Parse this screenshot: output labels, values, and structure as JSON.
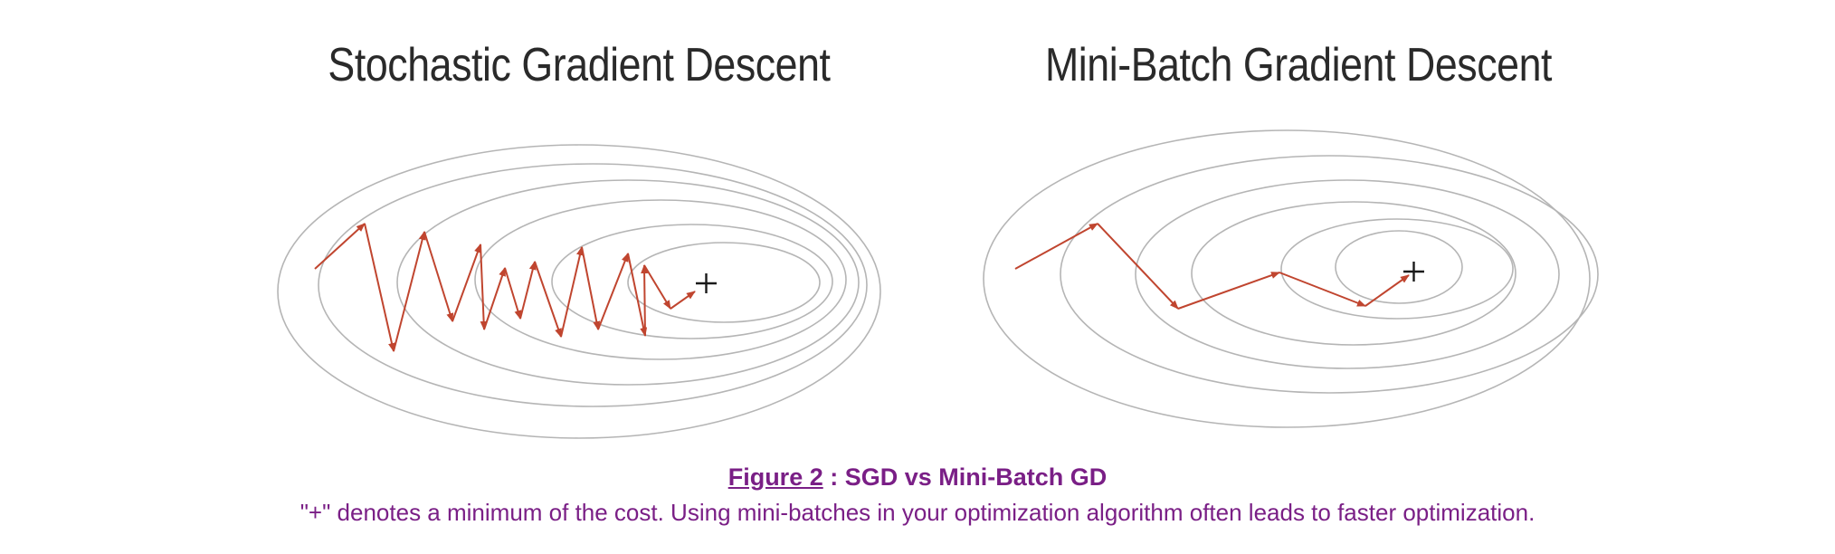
{
  "panels": {
    "left_title": "Stochastic Gradient Descent",
    "right_title": "Mini-Batch Gradient Descent",
    "minimum_marker": "+"
  },
  "caption": {
    "figure_label": "Figure 2",
    "separator": " : ",
    "title": "SGD vs Mini-Batch GD",
    "text": "\"+\" denotes a minimum of the cost. Using mini-batches in your optimization algorithm often leads to faster optimization."
  },
  "colors": {
    "contour": "#b5b5b5",
    "path": "#c0452f",
    "title_text": "#2a2a2a",
    "caption": "#7a1f86"
  }
}
